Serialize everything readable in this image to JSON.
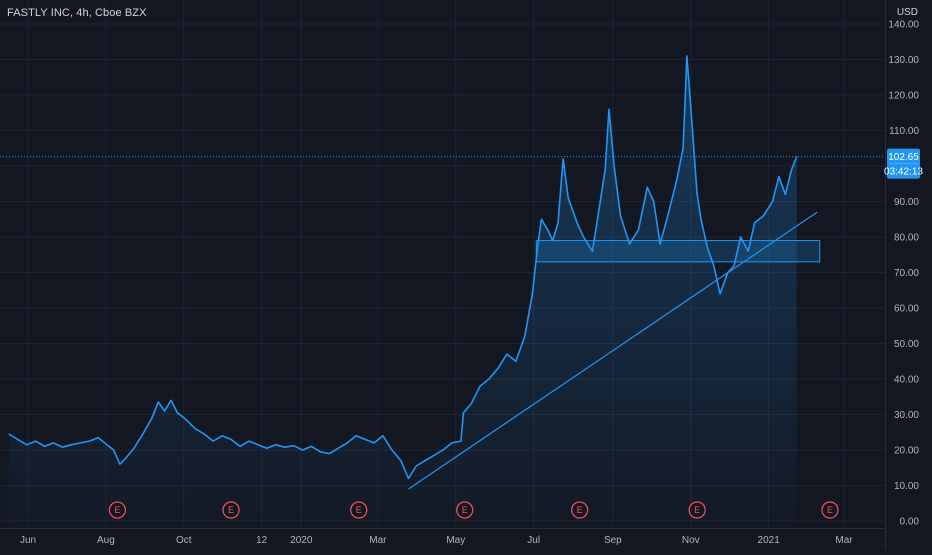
{
  "header": {
    "symbol_title": "FASTLY INC, 4h, Cboe BZX",
    "currency": "USD"
  },
  "price_tag": {
    "price": "102.65",
    "countdown": "03:42:13",
    "color": "#2196f3"
  },
  "colors": {
    "background": "#131722",
    "grid": "#1f2433",
    "line": "#2196f3",
    "earnings": "#f7525f",
    "text": "#b2b5be"
  },
  "earnings_markers": [
    {
      "label": "E",
      "date": "2019-08-10"
    },
    {
      "label": "E",
      "date": "2019-11-07"
    },
    {
      "label": "E",
      "date": "2020-02-15"
    },
    {
      "label": "E",
      "date": "2020-05-08"
    },
    {
      "label": "E",
      "date": "2020-08-06"
    },
    {
      "label": "E",
      "date": "2020-11-06"
    },
    {
      "label": "E",
      "date": "2021-02-18"
    }
  ],
  "chart_data": {
    "type": "area",
    "title": "FASTLY INC, 4h, Cboe BZX",
    "xlabel": "",
    "ylabel": "",
    "ylim": [
      0,
      140
    ],
    "grid": true,
    "y_ticks": [
      "140.00",
      "130.00",
      "120.00",
      "110.00",
      "100.00",
      "90.00",
      "80.00",
      "70.00",
      "60.00",
      "50.00",
      "40.00",
      "30.00",
      "20.00",
      "10.00",
      "0.00"
    ],
    "x_ticks": [
      {
        "label": "Jun",
        "date": "2019-06-01"
      },
      {
        "label": "Aug",
        "date": "2019-08-01"
      },
      {
        "label": "Oct",
        "date": "2019-10-01"
      },
      {
        "label": "12",
        "date": "2019-12-01"
      },
      {
        "label": "2020",
        "date": "2020-01-01"
      },
      {
        "label": "Mar",
        "date": "2020-03-01"
      },
      {
        "label": "May",
        "date": "2020-05-01"
      },
      {
        "label": "Jul",
        "date": "2020-07-01"
      },
      {
        "label": "Sep",
        "date": "2020-09-01"
      },
      {
        "label": "Nov",
        "date": "2020-11-01"
      },
      {
        "label": "2021",
        "date": "2021-01-01"
      },
      {
        "label": "Mar",
        "date": "2021-03-01"
      }
    ],
    "series": [
      {
        "points": [
          [
            "2019-05-17",
            24.5
          ],
          [
            "2019-05-24",
            23.0
          ],
          [
            "2019-05-31",
            21.5
          ],
          [
            "2019-06-07",
            22.5
          ],
          [
            "2019-06-14",
            21.0
          ],
          [
            "2019-06-21",
            22.0
          ],
          [
            "2019-06-28",
            20.8
          ],
          [
            "2019-07-05",
            21.5
          ],
          [
            "2019-07-12",
            22.0
          ],
          [
            "2019-07-19",
            22.5
          ],
          [
            "2019-07-26",
            23.5
          ],
          [
            "2019-07-31",
            22.0
          ],
          [
            "2019-08-07",
            20.0
          ],
          [
            "2019-08-12",
            16.0
          ],
          [
            "2019-08-16",
            17.5
          ],
          [
            "2019-08-23",
            20.5
          ],
          [
            "2019-08-30",
            24.5
          ],
          [
            "2019-09-06",
            29.0
          ],
          [
            "2019-09-11",
            33.5
          ],
          [
            "2019-09-16",
            31.0
          ],
          [
            "2019-09-21",
            34.0
          ],
          [
            "2019-09-26",
            30.5
          ],
          [
            "2019-10-03",
            28.5
          ],
          [
            "2019-10-10",
            26.0
          ],
          [
            "2019-10-17",
            24.5
          ],
          [
            "2019-10-24",
            22.5
          ],
          [
            "2019-10-31",
            24.0
          ],
          [
            "2019-11-07",
            23.0
          ],
          [
            "2019-11-14",
            21.0
          ],
          [
            "2019-11-21",
            22.5
          ],
          [
            "2019-11-28",
            21.5
          ],
          [
            "2019-12-05",
            20.5
          ],
          [
            "2019-12-12",
            21.5
          ],
          [
            "2019-12-19",
            20.8
          ],
          [
            "2019-12-26",
            21.2
          ],
          [
            "2020-01-02",
            20.0
          ],
          [
            "2020-01-09",
            21.0
          ],
          [
            "2020-01-16",
            19.5
          ],
          [
            "2020-01-23",
            19.0
          ],
          [
            "2020-01-30",
            20.5
          ],
          [
            "2020-02-06",
            22.0
          ],
          [
            "2020-02-13",
            24.0
          ],
          [
            "2020-02-20",
            23.0
          ],
          [
            "2020-02-27",
            22.0
          ],
          [
            "2020-03-05",
            24.0
          ],
          [
            "2020-03-12",
            20.0
          ],
          [
            "2020-03-19",
            17.0
          ],
          [
            "2020-03-25",
            12.0
          ],
          [
            "2020-03-31",
            15.5
          ],
          [
            "2020-04-07",
            17.0
          ],
          [
            "2020-04-14",
            18.5
          ],
          [
            "2020-04-21",
            20.0
          ],
          [
            "2020-04-28",
            22.0
          ],
          [
            "2020-05-05",
            22.5
          ],
          [
            "2020-05-07",
            30.5
          ],
          [
            "2020-05-13",
            33.0
          ],
          [
            "2020-05-20",
            38.0
          ],
          [
            "2020-05-27",
            40.0
          ],
          [
            "2020-06-03",
            43.0
          ],
          [
            "2020-06-10",
            47.0
          ],
          [
            "2020-06-17",
            45.0
          ],
          [
            "2020-06-24",
            52.0
          ],
          [
            "2020-06-30",
            64.0
          ],
          [
            "2020-07-04",
            77.0
          ],
          [
            "2020-07-07",
            85.0
          ],
          [
            "2020-07-12",
            82.0
          ],
          [
            "2020-07-16",
            79.0
          ],
          [
            "2020-07-20",
            84.0
          ],
          [
            "2020-07-24",
            102.0
          ],
          [
            "2020-07-28",
            91.0
          ],
          [
            "2020-08-04",
            84.0
          ],
          [
            "2020-08-09",
            80.0
          ],
          [
            "2020-08-16",
            76.0
          ],
          [
            "2020-08-20",
            85.0
          ],
          [
            "2020-08-26",
            99.0
          ],
          [
            "2020-08-29",
            116.0
          ],
          [
            "2020-09-02",
            100.0
          ],
          [
            "2020-09-07",
            86.0
          ],
          [
            "2020-09-14",
            78.0
          ],
          [
            "2020-09-21",
            82.0
          ],
          [
            "2020-09-28",
            94.0
          ],
          [
            "2020-10-03",
            90.0
          ],
          [
            "2020-10-08",
            78.0
          ],
          [
            "2020-10-14",
            86.0
          ],
          [
            "2020-10-21",
            96.0
          ],
          [
            "2020-10-26",
            105.0
          ],
          [
            "2020-10-29",
            131.0
          ],
          [
            "2020-11-02",
            112.0
          ],
          [
            "2020-11-06",
            92.0
          ],
          [
            "2020-11-09",
            85.0
          ],
          [
            "2020-11-14",
            77.0
          ],
          [
            "2020-11-19",
            72.0
          ],
          [
            "2020-11-24",
            64.0
          ],
          [
            "2020-11-30",
            70.0
          ],
          [
            "2020-12-05",
            72.0
          ],
          [
            "2020-12-10",
            80.0
          ],
          [
            "2020-12-16",
            76.0
          ],
          [
            "2020-12-21",
            84.0
          ],
          [
            "2020-12-28",
            86.0
          ],
          [
            "2021-01-04",
            90.0
          ],
          [
            "2021-01-09",
            97.0
          ],
          [
            "2021-01-14",
            92.0
          ],
          [
            "2021-01-19",
            99.0
          ],
          [
            "2021-01-23",
            102.65
          ]
        ]
      }
    ],
    "trendline": [
      [
        "2020-03-25",
        9.0
      ],
      [
        "2021-02-08",
        87.0
      ]
    ],
    "zone": {
      "x": [
        "2020-07-03",
        "2021-02-10"
      ],
      "y": [
        73.0,
        79.0
      ]
    },
    "current_price": 102.65
  }
}
